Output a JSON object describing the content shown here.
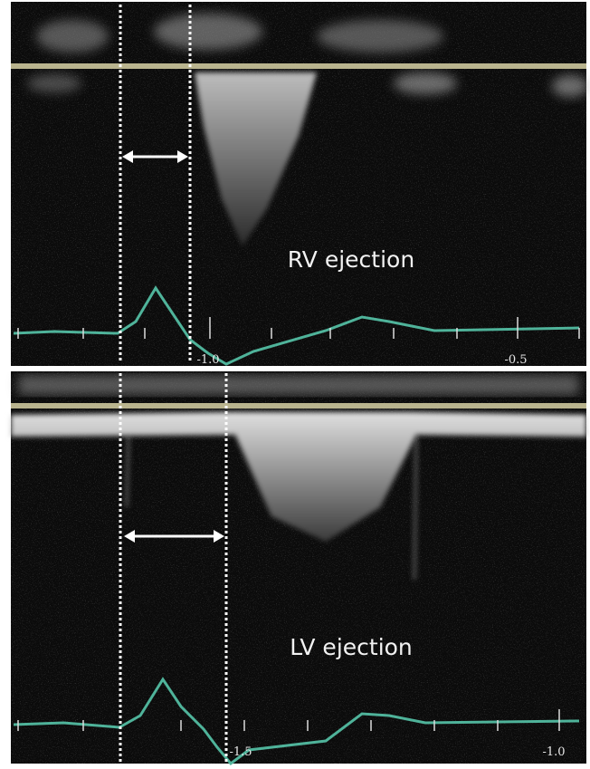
{
  "panels": [
    {
      "label": "RV ejection",
      "axis_labels": [
        "-1.0",
        "-0.5"
      ]
    },
    {
      "label": "LV ejection",
      "axis_labels": [
        "-1.5",
        "-1.0"
      ]
    }
  ]
}
